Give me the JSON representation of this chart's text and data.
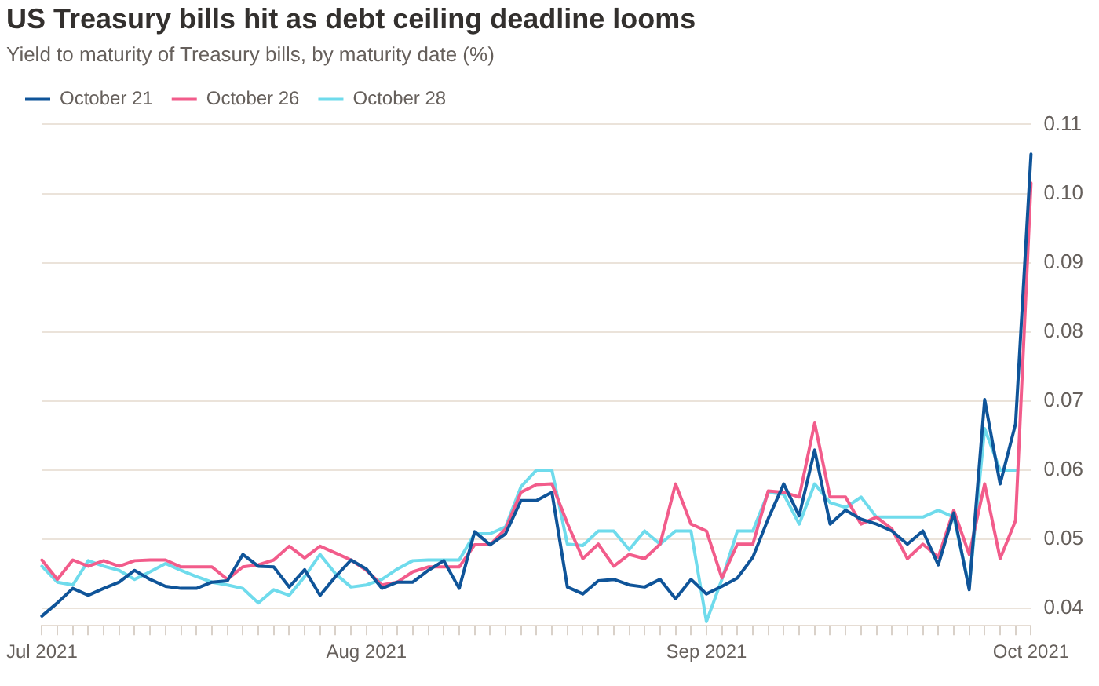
{
  "chart_data": {
    "type": "line",
    "title": "US Treasury bills hit as debt ceiling deadline looms",
    "subtitle": "Yield to maturity of Treasury bills, by maturity date (%)",
    "categories": [
      "Jul 2021",
      null,
      null,
      null,
      null,
      null,
      null,
      null,
      null,
      null,
      null,
      null,
      null,
      null,
      null,
      null,
      null,
      null,
      null,
      null,
      null,
      "Aug 2021",
      null,
      null,
      null,
      null,
      null,
      null,
      null,
      null,
      null,
      null,
      null,
      null,
      null,
      null,
      null,
      null,
      null,
      null,
      null,
      null,
      null,
      "Sep 2021",
      null,
      null,
      null,
      null,
      null,
      null,
      null,
      null,
      null,
      null,
      null,
      null,
      null,
      null,
      null,
      null,
      null,
      null,
      null,
      null,
      "Oct 2021"
    ],
    "series": [
      {
        "name": "October 21",
        "color": "#0f5499",
        "values": [
          0.0389,
          0.0408,
          0.0429,
          0.0419,
          0.0429,
          0.0438,
          0.0455,
          0.0442,
          0.0432,
          0.0429,
          0.0429,
          0.0438,
          0.044,
          0.0478,
          0.0461,
          0.046,
          0.0431,
          0.0456,
          0.0419,
          0.0446,
          0.047,
          0.0457,
          0.0429,
          0.0438,
          0.0438,
          0.0455,
          0.0469,
          0.0429,
          0.0511,
          0.0492,
          0.0508,
          0.0556,
          0.0556,
          0.0568,
          0.0431,
          0.0421,
          0.044,
          0.0442,
          0.0434,
          0.0431,
          0.0442,
          0.0414,
          0.0442,
          0.0421,
          0.0432,
          0.0444,
          0.0474,
          0.053,
          0.058,
          0.0534,
          0.0629,
          0.0522,
          0.0542,
          0.0529,
          0.0522,
          0.0512,
          0.0493,
          0.0512,
          0.0463,
          0.0538,
          0.0427,
          0.0702,
          0.058,
          0.0667,
          0.1057
        ]
      },
      {
        "name": "October 26",
        "color": "#f25c8b",
        "values": [
          0.047,
          0.0442,
          0.047,
          0.0461,
          0.0469,
          0.0461,
          0.0469,
          0.047,
          0.047,
          0.046,
          0.046,
          0.046,
          0.0442,
          0.046,
          0.0463,
          0.047,
          0.049,
          0.0473,
          0.049,
          0.048,
          0.047,
          0.0455,
          0.0434,
          0.0438,
          0.0453,
          0.046,
          0.046,
          0.046,
          0.0492,
          0.0492,
          0.0515,
          0.0568,
          0.0579,
          0.058,
          0.0523,
          0.0472,
          0.0493,
          0.0461,
          0.0478,
          0.0472,
          0.0493,
          0.058,
          0.0522,
          0.0512,
          0.0444,
          0.0493,
          0.0493,
          0.057,
          0.0568,
          0.0561,
          0.0668,
          0.0561,
          0.0561,
          0.0522,
          0.0532,
          0.0515,
          0.0472,
          0.0493,
          0.0474,
          0.0542,
          0.0478,
          0.058,
          0.0472,
          0.0527,
          0.1015
        ]
      },
      {
        "name": "October 28",
        "color": "#6fdbec",
        "values": [
          0.0461,
          0.0438,
          0.0434,
          0.0469,
          0.0461,
          0.0455,
          0.0442,
          0.0453,
          0.0465,
          0.0455,
          0.0446,
          0.0438,
          0.0434,
          0.0429,
          0.0408,
          0.0427,
          0.0419,
          0.0446,
          0.0478,
          0.045,
          0.0431,
          0.0434,
          0.0442,
          0.0457,
          0.0469,
          0.047,
          0.047,
          0.047,
          0.0508,
          0.0508,
          0.0518,
          0.0576,
          0.06,
          0.06,
          0.0493,
          0.0491,
          0.0512,
          0.0512,
          0.0485,
          0.0512,
          0.0493,
          0.0512,
          0.0512,
          0.0381,
          0.0442,
          0.0512,
          0.0512,
          0.0568,
          0.0565,
          0.0522,
          0.058,
          0.0553,
          0.0546,
          0.0561,
          0.0532,
          0.0532,
          0.0532,
          0.0532,
          0.0542,
          0.0532,
          0.0432,
          0.066,
          0.06,
          0.06,
          null
        ]
      }
    ],
    "ylim": [
      0.0375,
      0.11
    ],
    "yticks": [
      0.04,
      0.05,
      0.06,
      0.07,
      0.08,
      0.09,
      {
        "value": 0.1,
        "label": "0.10"
      },
      0.11
    ],
    "grid": "y",
    "legend": "top left"
  }
}
